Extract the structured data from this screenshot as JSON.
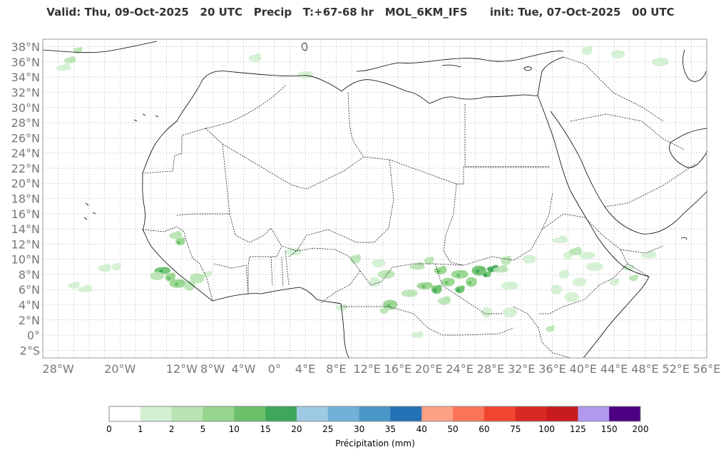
{
  "title": {
    "valid": "Valid: Thu, 09-Oct-2025",
    "valid_hour": "20 UTC",
    "field": "Precip",
    "lead": "T:+67-68 hr",
    "model": "MOL_6KM_IFS",
    "init": "init: Tue, 07-Oct-2025",
    "init_hour": "00 UTC"
  },
  "map": {
    "lon_range": [
      -30,
      56
    ],
    "lat_range": [
      -3,
      39
    ],
    "lat_ticks": [
      "38°N",
      "36°N",
      "34°N",
      "32°N",
      "30°N",
      "28°N",
      "26°N",
      "24°N",
      "22°N",
      "20°N",
      "18°N",
      "16°N",
      "14°N",
      "12°N",
      "10°N",
      "8°N",
      "6°N",
      "4°N",
      "2°N",
      "0°",
      "2°S"
    ],
    "lat_values": [
      38,
      36,
      34,
      32,
      30,
      28,
      26,
      24,
      22,
      20,
      18,
      16,
      14,
      12,
      10,
      8,
      6,
      4,
      2,
      0,
      -2
    ],
    "lon_ticks": [
      "28°W",
      "20°W",
      "12°W",
      "8°W",
      "4°W",
      "0°",
      "4°E",
      "8°E",
      "12°E",
      "16°E",
      "20°E",
      "24°E",
      "28°E",
      "32°E",
      "36°E",
      "40°E",
      "44°E",
      "48°E",
      "52°E",
      "56°E"
    ],
    "lon_values": [
      -28,
      -20,
      -12,
      -8,
      -4,
      0,
      4,
      8,
      12,
      16,
      20,
      24,
      28,
      32,
      36,
      40,
      44,
      48,
      52,
      56
    ],
    "grid": true,
    "colors": {
      "coast": "#000000",
      "border": "#000000",
      "grid": "#bbbbbb",
      "frame": "#999999"
    }
  },
  "precip_cells": [
    {
      "lon": -25.5,
      "lat": 37.5,
      "intensity": 2
    },
    {
      "lon": -26.5,
      "lat": 36.2,
      "intensity": 2
    },
    {
      "lon": -27.3,
      "lat": 35.2,
      "intensity": 1
    },
    {
      "lon": -12.2,
      "lat": 12.3,
      "intensity": 3
    },
    {
      "lon": -12.8,
      "lat": 13.1,
      "intensity": 2
    },
    {
      "lon": -14.5,
      "lat": 8.5,
      "intensity": 4
    },
    {
      "lon": -13.5,
      "lat": 7.6,
      "intensity": 3
    },
    {
      "lon": -15.2,
      "lat": 7.8,
      "intensity": 2
    },
    {
      "lon": -12.5,
      "lat": 6.8,
      "intensity": 3
    },
    {
      "lon": -11.0,
      "lat": 6.5,
      "intensity": 2
    },
    {
      "lon": -10.0,
      "lat": 7.5,
      "intensity": 2
    },
    {
      "lon": -8.7,
      "lat": 8.0,
      "intensity": 1
    },
    {
      "lon": -26.0,
      "lat": 6.5,
      "intensity": 1
    },
    {
      "lon": -24.5,
      "lat": 6.0,
      "intensity": 1
    },
    {
      "lon": -20.5,
      "lat": 9.0,
      "intensity": 1
    },
    {
      "lon": -22.0,
      "lat": 8.8,
      "intensity": 1
    },
    {
      "lon": 2.5,
      "lat": 11.0,
      "intensity": 1
    },
    {
      "lon": 10.5,
      "lat": 10.0,
      "intensity": 2
    },
    {
      "lon": 13.5,
      "lat": 9.5,
      "intensity": 1
    },
    {
      "lon": 14.5,
      "lat": 8.0,
      "intensity": 2
    },
    {
      "lon": 13.0,
      "lat": 7.0,
      "intensity": 1
    },
    {
      "lon": 15.0,
      "lat": 4.0,
      "intensity": 3
    },
    {
      "lon": 14.2,
      "lat": 3.2,
      "intensity": 2
    },
    {
      "lon": 8.7,
      "lat": 3.6,
      "intensity": 1
    },
    {
      "lon": 18.5,
      "lat": 9.0,
      "intensity": 2
    },
    {
      "lon": 20.0,
      "lat": 9.8,
      "intensity": 2
    },
    {
      "lon": 21.5,
      "lat": 8.5,
      "intensity": 3
    },
    {
      "lon": 19.5,
      "lat": 6.5,
      "intensity": 3
    },
    {
      "lon": 21.0,
      "lat": 6.0,
      "intensity": 4
    },
    {
      "lon": 22.5,
      "lat": 7.0,
      "intensity": 3
    },
    {
      "lon": 24.0,
      "lat": 8.0,
      "intensity": 3
    },
    {
      "lon": 25.5,
      "lat": 7.0,
      "intensity": 3
    },
    {
      "lon": 26.5,
      "lat": 8.5,
      "intensity": 4
    },
    {
      "lon": 27.5,
      "lat": 8.0,
      "intensity": 4
    },
    {
      "lon": 28.3,
      "lat": 8.7,
      "intensity": 5
    },
    {
      "lon": 29.3,
      "lat": 8.6,
      "intensity": 2
    },
    {
      "lon": 24.0,
      "lat": 6.0,
      "intensity": 4
    },
    {
      "lon": 22.0,
      "lat": 4.5,
      "intensity": 2
    },
    {
      "lon": 17.5,
      "lat": 5.5,
      "intensity": 2
    },
    {
      "lon": 30.0,
      "lat": 9.8,
      "intensity": 2
    },
    {
      "lon": 33.0,
      "lat": 10.0,
      "intensity": 1
    },
    {
      "lon": 30.5,
      "lat": 6.5,
      "intensity": 1
    },
    {
      "lon": 27.5,
      "lat": 3.0,
      "intensity": 1
    },
    {
      "lon": 30.5,
      "lat": 3.0,
      "intensity": 1
    },
    {
      "lon": 35.7,
      "lat": 0.8,
      "intensity": 2
    },
    {
      "lon": 18.5,
      "lat": 0.0,
      "intensity": 1
    },
    {
      "lon": 37.0,
      "lat": 12.5,
      "intensity": 1
    },
    {
      "lon": 38.0,
      "lat": 10.5,
      "intensity": 1
    },
    {
      "lon": 39.0,
      "lat": 11.0,
      "intensity": 2
    },
    {
      "lon": 40.5,
      "lat": 10.5,
      "intensity": 1
    },
    {
      "lon": 37.5,
      "lat": 8.0,
      "intensity": 1
    },
    {
      "lon": 39.5,
      "lat": 7.0,
      "intensity": 1
    },
    {
      "lon": 41.5,
      "lat": 9.0,
      "intensity": 1
    },
    {
      "lon": 36.5,
      "lat": 6.0,
      "intensity": 1
    },
    {
      "lon": 38.5,
      "lat": 5.0,
      "intensity": 1
    },
    {
      "lon": 46.5,
      "lat": 7.5,
      "intensity": 2
    },
    {
      "lon": 45.8,
      "lat": 8.8,
      "intensity": 1
    },
    {
      "lon": 48.5,
      "lat": 10.5,
      "intensity": 1
    },
    {
      "lon": 44.0,
      "lat": 7.0,
      "intensity": 1
    },
    {
      "lon": -2.5,
      "lat": 36.5,
      "intensity": 1
    },
    {
      "lon": 4.0,
      "lat": 34.3,
      "intensity": 1
    },
    {
      "lon": 40.5,
      "lat": 37.5,
      "intensity": 1
    },
    {
      "lon": 44.5,
      "lat": 37.0,
      "intensity": 1
    },
    {
      "lon": 50.0,
      "lat": 36.0,
      "intensity": 1
    }
  ],
  "colorbar": {
    "label": "Précipitation (mm)",
    "ticks": [
      "0",
      "1",
      "2",
      "5",
      "10",
      "15",
      "20",
      "25",
      "30",
      "35",
      "40",
      "50",
      "60",
      "75",
      "100",
      "125",
      "150",
      "200"
    ],
    "colors": [
      "#ffffff",
      "#d2f0d2",
      "#b8e3b2",
      "#96d58d",
      "#6bc16a",
      "#3ea75a",
      "#9fcae3",
      "#72b0d8",
      "#4a96c7",
      "#2272b5",
      "#fca185",
      "#fb7458",
      "#f14530",
      "#d82a24",
      "#c81b1d",
      "#b199ee",
      "#4b0083"
    ]
  }
}
